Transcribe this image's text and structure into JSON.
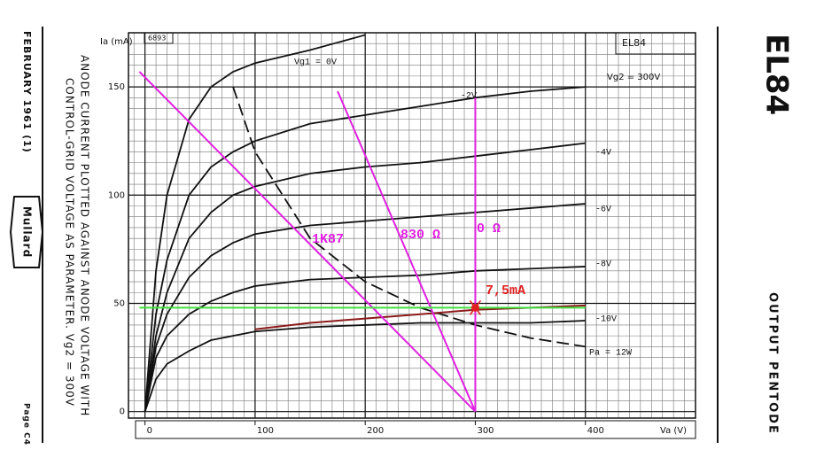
{
  "page": {
    "date": "FEBRUARY 1961 (1)",
    "brand": "Mullard",
    "caption_lines": [
      "ANODE CURRENT PLOTTED AGAINST ANODE VOLTAGE WITH",
      "CONTROL-GRID VOLTAGE AS PARAMETER. Vg2 = 300V"
    ],
    "page_no": "Page C4",
    "tube": "EL84",
    "description": "OUTPUT PENTODE"
  },
  "chart_data": {
    "type": "line",
    "x_label": "Va (V)",
    "y_label": "Ia (mA)",
    "annotations": [
      "6893",
      "EL84",
      "Vg2 = 300V"
    ],
    "xlim": [
      -15,
      500
    ],
    "ylim": [
      -3,
      175
    ],
    "xticks": [
      0,
      100,
      200,
      300,
      400
    ],
    "yticks": [
      0,
      50,
      100,
      150
    ],
    "grid": true,
    "minor_grid": {
      "x": 10,
      "y": 5
    },
    "series": [
      {
        "name": "Vg1 = 0V",
        "color": "#111111",
        "x": [
          0,
          10,
          20,
          40,
          60,
          80,
          100,
          150,
          200
        ],
        "values": [
          0,
          65,
          100,
          135,
          150,
          157,
          161,
          167,
          174
        ]
      },
      {
        "name": "-2V",
        "color": "#111111",
        "x": [
          0,
          10,
          20,
          40,
          60,
          80,
          100,
          150,
          200,
          250,
          300,
          350,
          400
        ],
        "values": [
          0,
          45,
          70,
          100,
          113,
          120,
          125,
          133,
          137,
          141,
          145,
          148,
          150
        ]
      },
      {
        "name": "-4V",
        "color": "#111111",
        "x": [
          0,
          10,
          20,
          40,
          60,
          80,
          100,
          150,
          200,
          250,
          300,
          350,
          400
        ],
        "values": [
          0,
          35,
          55,
          80,
          92,
          100,
          104,
          110,
          113,
          115,
          118,
          121,
          124
        ]
      },
      {
        "name": "-6V",
        "color": "#111111",
        "x": [
          0,
          10,
          20,
          40,
          60,
          80,
          100,
          150,
          200,
          250,
          300,
          350,
          400
        ],
        "values": [
          0,
          30,
          45,
          62,
          72,
          78,
          82,
          86,
          88,
          90,
          92,
          94,
          96
        ]
      },
      {
        "name": "-8V",
        "color": "#111111",
        "x": [
          0,
          10,
          20,
          40,
          60,
          80,
          100,
          150,
          200,
          250,
          300,
          350,
          400
        ],
        "values": [
          0,
          25,
          35,
          45,
          51,
          55,
          58,
          61,
          62,
          63,
          65,
          66,
          67
        ]
      },
      {
        "name": "-10V",
        "color": "#111111",
        "x": [
          0,
          10,
          20,
          40,
          60,
          80,
          100,
          150,
          200,
          250,
          300,
          350,
          400
        ],
        "values": [
          0,
          15,
          22,
          28,
          33,
          35,
          37,
          39,
          40,
          41,
          41,
          41,
          42
        ]
      },
      {
        "name": "Pa = 12W",
        "color": "#111111",
        "dash": true,
        "x": [
          80,
          100,
          150,
          200,
          250,
          300,
          350,
          400
        ],
        "values": [
          150,
          120,
          80,
          60,
          48,
          40,
          34,
          30
        ]
      },
      {
        "color": "#8b1a1a",
        "x": [
          100,
          150,
          200,
          250,
          300,
          350,
          400
        ],
        "values": [
          38,
          41,
          43,
          45,
          47,
          48,
          49
        ]
      },
      {
        "name": "1K87",
        "color": "#e020e0",
        "x": [
          -5,
          300
        ],
        "values": [
          157,
          0
        ]
      },
      {
        "name": "830 Ω",
        "color": "#e020e0",
        "x": [
          175,
          300
        ],
        "values": [
          148,
          0
        ]
      },
      {
        "name": "0 Ω",
        "color": "#e020e0",
        "x": [
          300,
          300
        ],
        "values": [
          0,
          145
        ]
      },
      {
        "color": "#40e040",
        "x": [
          -5,
          400
        ],
        "values": [
          48,
          48
        ]
      },
      {
        "name": "7,5mA",
        "color": "#e02020",
        "marker": true,
        "x": [
          300
        ],
        "values": [
          48
        ]
      }
    ]
  }
}
